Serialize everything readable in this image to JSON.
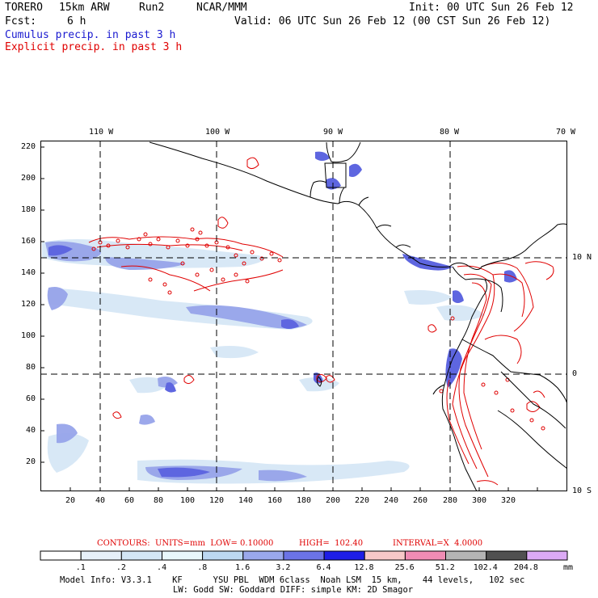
{
  "header": {
    "model": "TORERO",
    "resolution": "15km ARW",
    "run": "Run2",
    "org": "NCAR/MMM",
    "init": "Init: 00 UTC Sun 26 Feb 12",
    "fcst_label": "Fcst:",
    "fcst_value": "6 h",
    "valid": "Valid: 06 UTC Sun 26 Feb 12 (00 CST Sun 26 Feb 12)",
    "title_cumulus": "Cumulus precip. in past 3 h",
    "title_explicit": "Explicit precip. in past 3 h"
  },
  "axes": {
    "lon_labels": [
      "110 W",
      "100 W",
      "90 W",
      "80 W",
      "70 W"
    ],
    "lat_labels": [
      "10 N",
      "0",
      "10 S"
    ],
    "x_ticks": [
      "20",
      "40",
      "60",
      "80",
      "100",
      "120",
      "140",
      "160",
      "180",
      "200",
      "220",
      "240",
      "260",
      "280",
      "300",
      "320"
    ],
    "y_ticks": [
      "220",
      "200",
      "180",
      "160",
      "140",
      "120",
      "100",
      "80",
      "60",
      "40",
      "20"
    ]
  },
  "contours": {
    "units_label": "CONTOURS:  UNITS=mm  LOW= 0.10000",
    "high_label": "HIGH=  102.40",
    "interval_label": "INTERVAL=X  4.0000",
    "color": "#e00000"
  },
  "colorbar": {
    "labels": [
      ".1",
      ".2",
      ".4",
      ".8",
      "1.6",
      "3.2",
      "6.4",
      "12.8",
      "25.6",
      "51.2",
      "102.4",
      "204.8"
    ],
    "unit": "mm",
    "colors": [
      "#ffffff",
      "#e6f0fa",
      "#d3e6f5",
      "#e8f8fc",
      "#bcd8f2",
      "#9aa8ec",
      "#6b73e6",
      "#1e1ee6",
      "#f8c8c8",
      "#f08cb4",
      "#b4b4b4",
      "#505050",
      "#dcaaf5"
    ]
  },
  "footer": {
    "line1": "Model Info: V3.3.1    KF      YSU PBL  WDM 6class  Noah LSM  15 km,    44 levels,   102 sec",
    "line2": "LW: Godd SW: Goddard DIFF: simple KM: 2D Smagor"
  },
  "colors": {
    "cumulus": "#1a1ad0",
    "explicit": "#e00000",
    "coast": "#000000",
    "grid": "#000000"
  }
}
